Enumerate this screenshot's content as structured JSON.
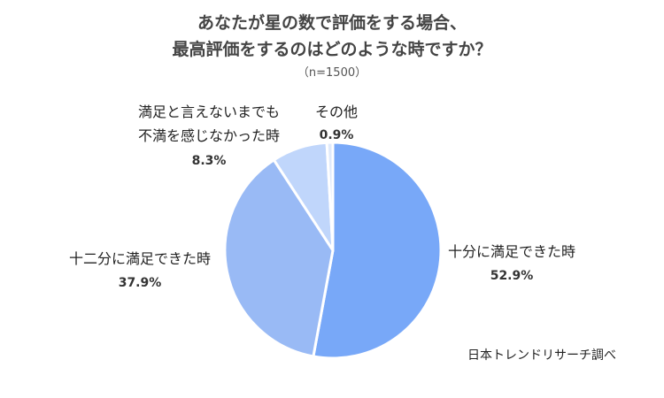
{
  "chart_data": {
    "type": "pie",
    "title_lines": [
      "あなたが星の数で評価をする場合、",
      "最高評価をするのはどのような時ですか？"
    ],
    "subtitle": "（n=1500）",
    "slices": [
      {
        "label_lines": [
          "十分に満足できた時"
        ],
        "value": 52.9,
        "value_label": "52.9%",
        "color": "#78A8F8"
      },
      {
        "label_lines": [
          "十二分に満足できた時"
        ],
        "value": 37.9,
        "value_label": "37.9%",
        "color": "#99BAF5"
      },
      {
        "label_lines": [
          "満足と言えないまでも",
          "不満を感じなかった時"
        ],
        "value": 8.3,
        "value_label": "8.3%",
        "color": "#C0D6FB"
      },
      {
        "label_lines": [
          "その他"
        ],
        "value": 0.9,
        "value_label": "0.9%",
        "color": "#E0EAFB"
      }
    ],
    "source": "日本トレンドリサーチ調べ"
  }
}
